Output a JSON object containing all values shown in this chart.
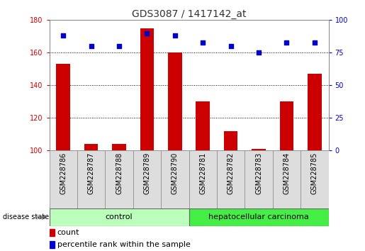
{
  "title": "GDS3087 / 1417142_at",
  "samples": [
    "GSM228786",
    "GSM228787",
    "GSM228788",
    "GSM228789",
    "GSM228790",
    "GSM228781",
    "GSM228782",
    "GSM228783",
    "GSM228784",
    "GSM228785"
  ],
  "counts": [
    153,
    104,
    104,
    175,
    160,
    130,
    112,
    101,
    130,
    147
  ],
  "percentile_ranks": [
    88,
    80,
    80,
    90,
    88,
    83,
    80,
    75,
    83,
    83
  ],
  "bar_color": "#cc0000",
  "dot_color": "#0000cc",
  "baseline": 100,
  "ylim_left": [
    100,
    180
  ],
  "ylim_right": [
    0,
    100
  ],
  "yticks_left": [
    100,
    120,
    140,
    160,
    180
  ],
  "yticks_right": [
    0,
    25,
    50,
    75,
    100
  ],
  "groups": [
    {
      "label": "control",
      "indices": [
        0,
        1,
        2,
        3,
        4
      ],
      "color": "#bbffbb"
    },
    {
      "label": "hepatocellular carcinoma",
      "indices": [
        5,
        6,
        7,
        8,
        9
      ],
      "color": "#44ee44"
    }
  ],
  "disease_state_label": "disease state",
  "legend_count_label": "count",
  "legend_percentile_label": "percentile rank within the sample",
  "grid_color": "#000000",
  "title_fontsize": 10,
  "axis_fontsize": 7,
  "label_fontsize": 7,
  "group_fontsize": 8,
  "legend_fontsize": 8
}
